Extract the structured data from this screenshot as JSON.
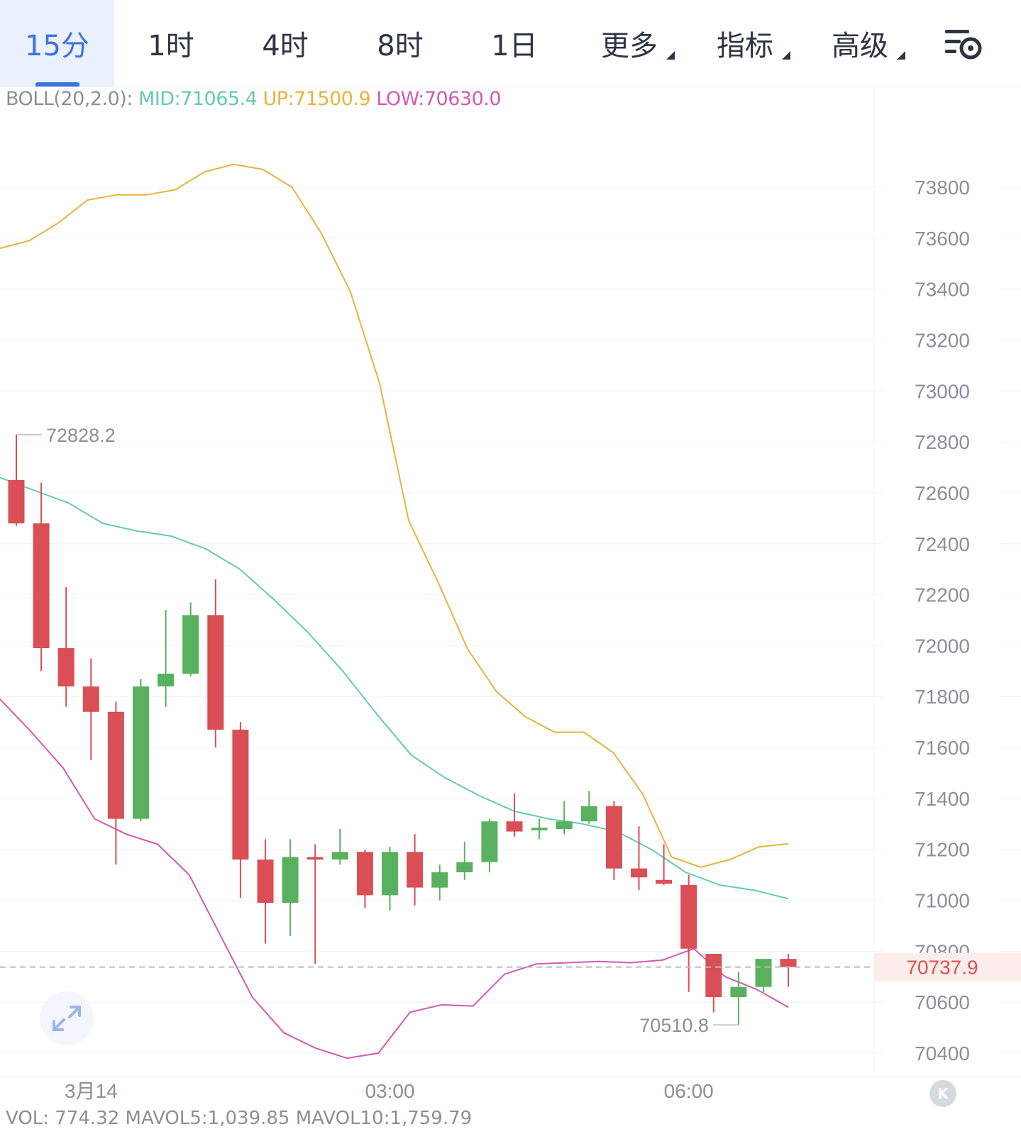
{
  "tabs": [
    {
      "label": "15分",
      "active": true,
      "dropdown": false
    },
    {
      "label": "1时",
      "active": false,
      "dropdown": false
    },
    {
      "label": "4时",
      "active": false,
      "dropdown": false
    },
    {
      "label": "8时",
      "active": false,
      "dropdown": false
    },
    {
      "label": "1日",
      "active": false,
      "dropdown": false
    },
    {
      "label": "更多",
      "active": false,
      "dropdown": true
    },
    {
      "label": "指标",
      "active": false,
      "dropdown": true
    },
    {
      "label": "高级",
      "active": false,
      "dropdown": true
    }
  ],
  "settings_icon": "chart-settings-icon",
  "indicator": {
    "name": "BOLL(20,2.0):",
    "mid": "MID:71065.4",
    "up": "UP:71500.9",
    "low": "LOW:70630.0"
  },
  "volume_bar": {
    "text": "VOL: 774.32  MAVOL5:1,039.85  MAVOL10:1,759.79"
  },
  "colors": {
    "accent": "#3b72df",
    "up_candle": "#59b15f",
    "down_candle": "#d94f55",
    "boll_mid": "#64cbb0",
    "boll_up": "#e8b33c",
    "boll_low": "#cf5bb4",
    "current_price": "#d9534f"
  },
  "expand_icon": "expand-arrows-icon",
  "k_button_label": "K",
  "chart_data": {
    "type": "candlestick",
    "interval": "15分",
    "y_ticks": [
      73800,
      73600,
      73400,
      73200,
      73000,
      72800,
      72600,
      72400,
      72200,
      72000,
      71800,
      71600,
      71400,
      71200,
      71000,
      70800,
      70600,
      70400
    ],
    "x_ticks": [
      {
        "index": 3,
        "label": "3月14"
      },
      {
        "index": 15,
        "label": "03:00"
      },
      {
        "index": 27,
        "label": "06:00"
      }
    ],
    "current_price": 70737.9,
    "current_price_label": "70737.9",
    "max_label": {
      "index": 0,
      "price": 72828.2,
      "text": "72828.2"
    },
    "min_label": {
      "index": 29,
      "price": 70510.8,
      "text": "70510.8"
    },
    "candles": [
      {
        "o": 72650,
        "h": 72828.2,
        "l": 72470,
        "c": 72480
      },
      {
        "o": 72480,
        "h": 72640,
        "l": 71900,
        "c": 71990
      },
      {
        "o": 71990,
        "h": 72230,
        "l": 71760,
        "c": 71840
      },
      {
        "o": 71840,
        "h": 71950,
        "l": 71550,
        "c": 71740
      },
      {
        "o": 71740,
        "h": 71780,
        "l": 71140,
        "c": 71320
      },
      {
        "o": 71320,
        "h": 71870,
        "l": 71310,
        "c": 71840
      },
      {
        "o": 71840,
        "h": 72140,
        "l": 71760,
        "c": 71890
      },
      {
        "o": 71890,
        "h": 72170,
        "l": 71880,
        "c": 72120
      },
      {
        "o": 72120,
        "h": 72260,
        "l": 71600,
        "c": 71670
      },
      {
        "o": 71670,
        "h": 71700,
        "l": 71010,
        "c": 71160
      },
      {
        "o": 71160,
        "h": 71240,
        "l": 70830,
        "c": 70990
      },
      {
        "o": 70990,
        "h": 71240,
        "l": 70860,
        "c": 71170
      },
      {
        "o": 71170,
        "h": 71220,
        "l": 70750,
        "c": 71160
      },
      {
        "o": 71160,
        "h": 71280,
        "l": 71140,
        "c": 71190
      },
      {
        "o": 71190,
        "h": 71200,
        "l": 70970,
        "c": 71020
      },
      {
        "o": 71020,
        "h": 71210,
        "l": 70960,
        "c": 71190
      },
      {
        "o": 71190,
        "h": 71260,
        "l": 70980,
        "c": 71050
      },
      {
        "o": 71050,
        "h": 71140,
        "l": 71000,
        "c": 71110
      },
      {
        "o": 71110,
        "h": 71230,
        "l": 71080,
        "c": 71150
      },
      {
        "o": 71150,
        "h": 71320,
        "l": 71110,
        "c": 71310
      },
      {
        "o": 71310,
        "h": 71420,
        "l": 71250,
        "c": 71270
      },
      {
        "o": 71275,
        "h": 71320,
        "l": 71240,
        "c": 71285
      },
      {
        "o": 71280,
        "h": 71390,
        "l": 71260,
        "c": 71310
      },
      {
        "o": 71310,
        "h": 71430,
        "l": 71300,
        "c": 71370
      },
      {
        "o": 71370,
        "h": 71390,
        "l": 71080,
        "c": 71125
      },
      {
        "o": 71125,
        "h": 71290,
        "l": 71040,
        "c": 71090
      },
      {
        "o": 71080,
        "h": 71220,
        "l": 71060,
        "c": 71065
      },
      {
        "o": 71060,
        "h": 71100,
        "l": 70640,
        "c": 70810
      },
      {
        "o": 70790,
        "h": 70790,
        "l": 70560,
        "c": 70620
      },
      {
        "o": 70620,
        "h": 70720,
        "l": 70510.8,
        "c": 70660
      },
      {
        "o": 70660,
        "h": 70770,
        "l": 70640,
        "c": 70770
      },
      {
        "o": 70770,
        "h": 70790,
        "l": 70660,
        "c": 70737.9
      }
    ],
    "series": [
      {
        "name": "UP",
        "values": [
          73560,
          73590,
          73660,
          73750,
          73770,
          73770,
          73790,
          73860,
          73890,
          73870,
          73800,
          73620,
          73390,
          73030,
          72490,
          72250,
          71990,
          71820,
          71720,
          71660,
          71660,
          71580,
          71420,
          71170,
          71130,
          71160,
          71210,
          71222
        ]
      },
      {
        "name": "MID",
        "values": [
          72660,
          72610,
          72560,
          72480,
          72450,
          72430,
          72380,
          72300,
          72180,
          72050,
          71900,
          71730,
          71570,
          71480,
          71410,
          71350,
          71320,
          71300,
          71270,
          71200,
          71110,
          71060,
          71040,
          71006
        ]
      },
      {
        "name": "LOW",
        "values": [
          71790,
          71660,
          71520,
          71320,
          71260,
          71220,
          71100,
          70860,
          70620,
          70480,
          70420,
          70380,
          70400,
          70560,
          70590,
          70585,
          70710,
          70750,
          70755,
          70760,
          70755,
          70765,
          70810,
          70700,
          70650,
          70580
        ]
      }
    ]
  }
}
